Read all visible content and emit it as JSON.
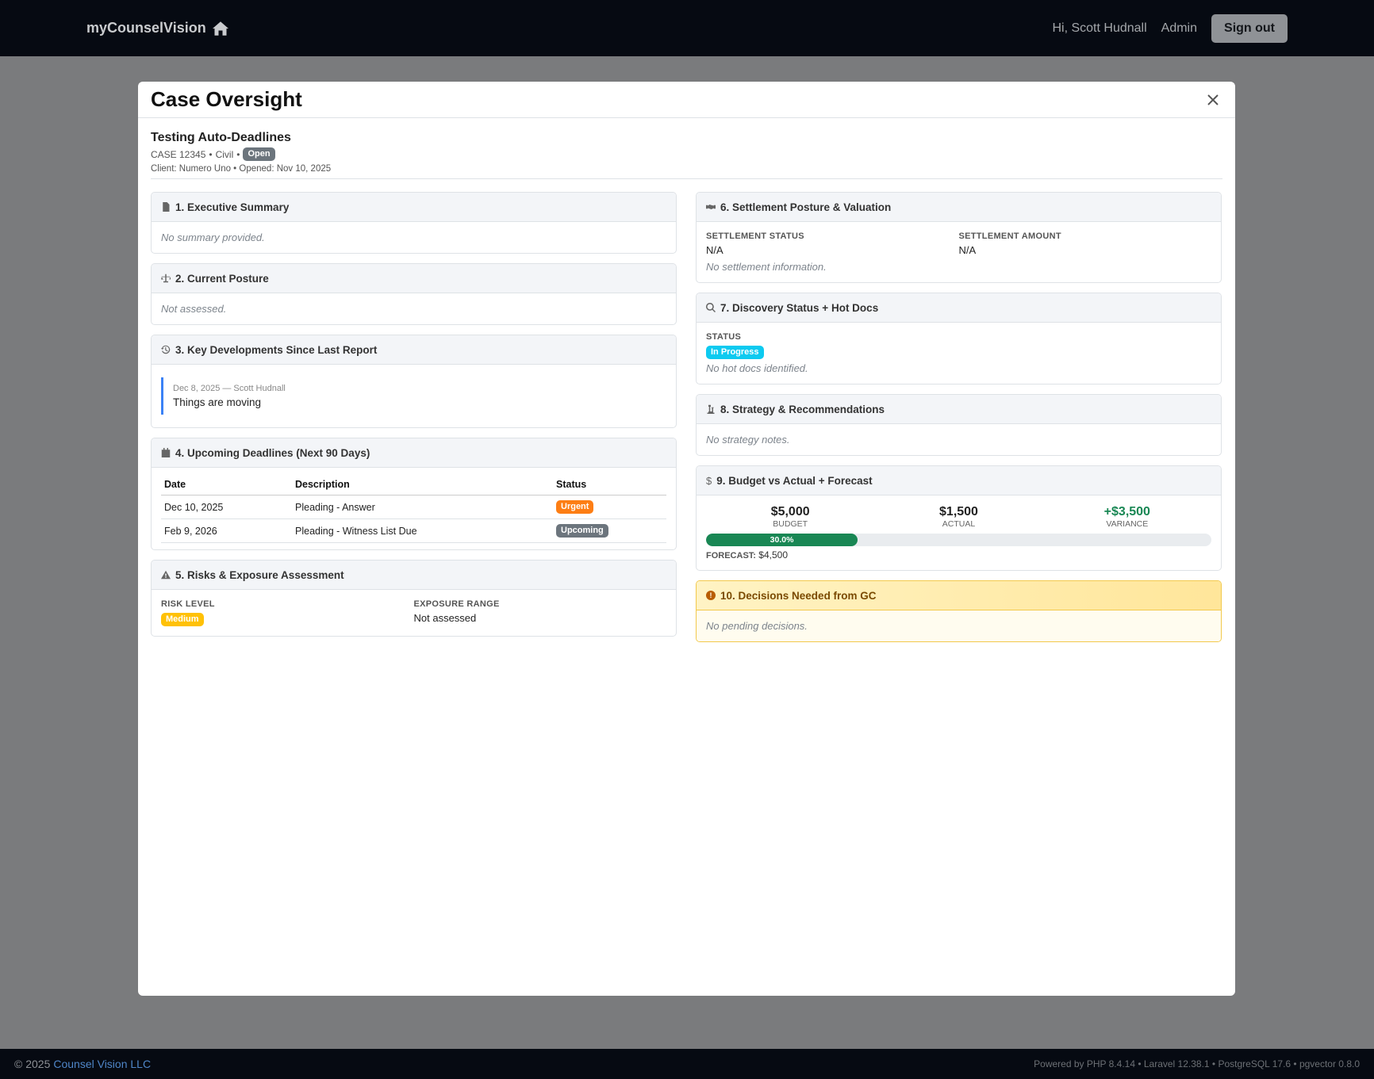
{
  "nav": {
    "brand": "myCounselVision",
    "greeting": "Hi, Scott Hudnall",
    "admin": "Admin",
    "signout": "Sign out"
  },
  "modal": {
    "title": "Case Oversight"
  },
  "case": {
    "title": "Testing Auto-Deadlines",
    "number": "CASE 12345",
    "type": "Civil",
    "status": "Open",
    "client_line": "Client: Numero Uno • Opened: Nov 10, 2025"
  },
  "s1": {
    "title": "1. Executive Summary",
    "body": "No summary provided."
  },
  "s2": {
    "title": "2. Current Posture",
    "body": "Not assessed."
  },
  "s3": {
    "title": "3. Key Developments Since Last Report",
    "meta": "Dec 8, 2025 — Scott Hudnall",
    "text": "Things are moving"
  },
  "s4": {
    "title": "4. Upcoming Deadlines (Next 90 Days)",
    "headers": [
      "Date",
      "Description",
      "Status"
    ],
    "rows": [
      {
        "date": "Dec 10, 2025",
        "desc": "Pleading - Answer",
        "status": "Urgent"
      },
      {
        "date": "Feb 9, 2026",
        "desc": "Pleading - Witness List Due",
        "status": "Upcoming"
      }
    ]
  },
  "s5": {
    "title": "5. Risks & Exposure Assessment",
    "risk_label": "RISK LEVEL",
    "risk": "Medium",
    "exposure_label": "EXPOSURE RANGE",
    "exposure": "Not assessed"
  },
  "s6": {
    "title": "6. Settlement Posture & Valuation",
    "status_label": "SETTLEMENT STATUS",
    "status": "N/A",
    "amount_label": "SETTLEMENT AMOUNT",
    "amount": "N/A",
    "note": "No settlement information."
  },
  "s7": {
    "title": "7. Discovery Status + Hot Docs",
    "status_label": "STATUS",
    "status": "In Progress",
    "note": "No hot docs identified."
  },
  "s8": {
    "title": "8. Strategy & Recommendations",
    "body": "No strategy notes."
  },
  "s9": {
    "title": "9. Budget vs Actual + Forecast",
    "budget": "$5,000",
    "budget_label": "BUDGET",
    "actual": "$1,500",
    "actual_label": "ACTUAL",
    "variance": "+$3,500",
    "variance_label": "VARIANCE",
    "progress_text": "30.0%",
    "progress": 0.3,
    "forecast_label": "FORECAST:",
    "forecast": "$4,500"
  },
  "s10": {
    "title": "10. Decisions Needed from GC",
    "body": "No pending decisions."
  },
  "footer": {
    "copy": "© 2025",
    "company": "Counsel Vision LLC",
    "powered": "Powered by PHP 8.4.14 • Laravel 12.38.1 • PostgreSQL 17.6 • pgvector 0.8.0"
  },
  "colors": {
    "nav_bg": "#060a12",
    "urgent": "#fd7e14",
    "upcoming": "#6c757d",
    "in_progress": "#0dcaf0",
    "medium": "#ffc107",
    "progress": "#198754"
  }
}
